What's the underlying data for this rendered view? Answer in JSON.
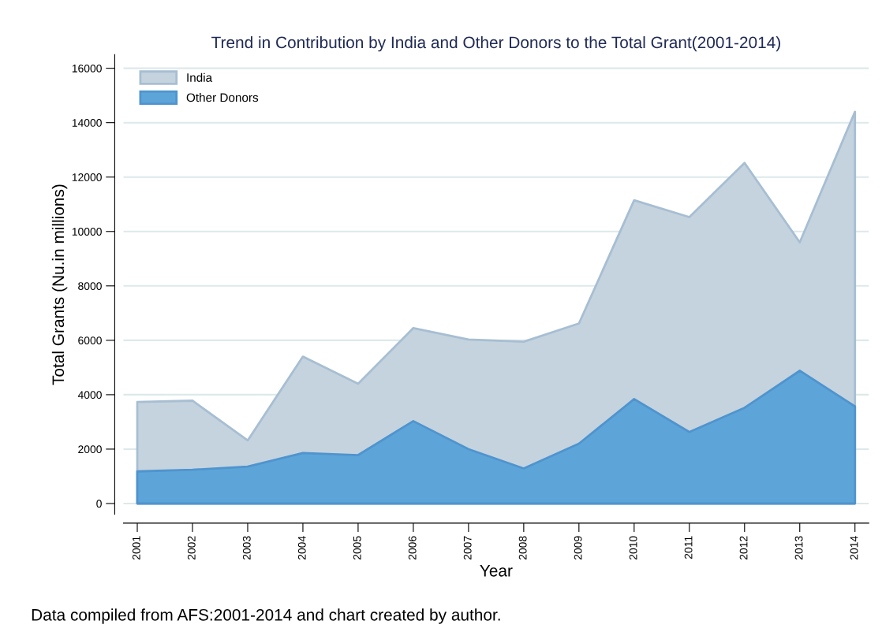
{
  "chart_data": {
    "type": "area",
    "title": "Trend in Contribution by India and Other Donors to the Total Grant(2001-2014)",
    "xlabel": "Year",
    "ylabel": "Total Grants (Nu.in millions)",
    "categories": [
      "2001",
      "2002",
      "2003",
      "2004",
      "2005",
      "2006",
      "2007",
      "2008",
      "2009",
      "2010",
      "2011",
      "2012",
      "2013",
      "2014"
    ],
    "series": [
      {
        "name": "India",
        "color": "#c5d3de",
        "values": [
          3730,
          3780,
          2320,
          5400,
          4400,
          6450,
          6030,
          5950,
          6620,
          11150,
          10530,
          12520,
          9600,
          14400
        ]
      },
      {
        "name": "Other Donors",
        "color": "#5da5d9",
        "values": [
          1180,
          1240,
          1360,
          1860,
          1780,
          3030,
          2000,
          1290,
          2200,
          3840,
          2630,
          3520,
          4880,
          3570
        ]
      }
    ],
    "ylim": [
      -400,
      16500
    ],
    "yticks": [
      0,
      2000,
      4000,
      6000,
      8000,
      10000,
      12000,
      14000,
      16000
    ],
    "grid": "y",
    "legend": "top left",
    "annotations": [
      "Data compiled from AFS:2001-2014 and chart created by author."
    ]
  }
}
